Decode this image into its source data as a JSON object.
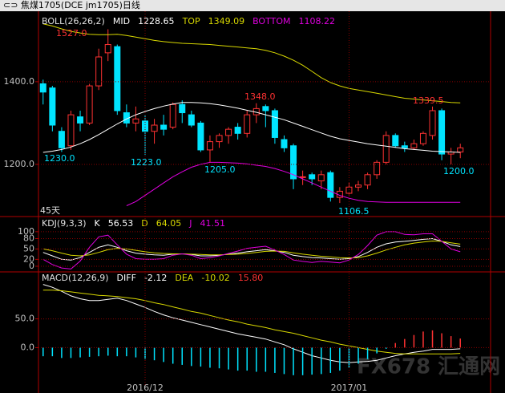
{
  "title_bar": "⊂⊃ 焦煤1705(DCE jm1705)日线",
  "watermark": "FX678 汇通网",
  "chart_data": [
    {
      "type": "candlestick",
      "indicator": "BOLL(26,26,2)",
      "note": "45天",
      "up_color": "#ff3232",
      "down_color": "#00e4ff",
      "open": [
        1395,
        1385,
        1280,
        1245,
        1315,
        1300,
        1390,
        1470,
        1485,
        1325,
        1300,
        1305,
        1280,
        1295,
        1290,
        1345,
        1320,
        1300,
        1235,
        1255,
        1270,
        1290,
        1275,
        1320,
        1340,
        1330,
        1260,
        1245,
        1170,
        1175,
        1160,
        1180,
        1120,
        1130,
        1145,
        1150,
        1175,
        1205,
        1270,
        1245,
        1240,
        1250,
        1270,
        1330,
        1225,
        1230
      ],
      "high": [
        1405,
        1390,
        1290,
        1330,
        1330,
        1395,
        1480,
        1527,
        1490,
        1345,
        1340,
        1320,
        1310,
        1320,
        1350,
        1355,
        1330,
        1305,
        1270,
        1275,
        1290,
        1300,
        1330,
        1348,
        1345,
        1335,
        1270,
        1250,
        1185,
        1180,
        1185,
        1185,
        1145,
        1155,
        1160,
        1180,
        1210,
        1280,
        1275,
        1255,
        1260,
        1280,
        1340,
        1335,
        1240,
        1250
      ],
      "low": [
        1345,
        1280,
        1230,
        1235,
        1280,
        1295,
        1380,
        1450,
        1320,
        1290,
        1280,
        1223,
        1250,
        1270,
        1285,
        1300,
        1290,
        1230,
        1205,
        1240,
        1250,
        1260,
        1265,
        1300,
        1290,
        1250,
        1230,
        1140,
        1150,
        1150,
        1140,
        1110,
        1106.5,
        1125,
        1135,
        1140,
        1165,
        1200,
        1240,
        1230,
        1235,
        1245,
        1260,
        1210,
        1200,
        1215
      ],
      "close": [
        1375,
        1295,
        1240,
        1320,
        1300,
        1390,
        1460,
        1490,
        1330,
        1300,
        1310,
        1280,
        1295,
        1285,
        1345,
        1325,
        1295,
        1235,
        1255,
        1270,
        1285,
        1275,
        1320,
        1335,
        1330,
        1265,
        1240,
        1165,
        1170,
        1165,
        1175,
        1120,
        1135,
        1145,
        1150,
        1175,
        1205,
        1270,
        1245,
        1240,
        1250,
        1275,
        1330,
        1225,
        1230,
        1240
      ],
      "series": [
        {
          "name": "MID",
          "last": "1228.65",
          "color": "#ffffff",
          "values": [
            1229,
            1232,
            1236,
            1242,
            1250,
            1260,
            1272,
            1285,
            1298,
            1310,
            1320,
            1328,
            1335,
            1341,
            1346,
            1350,
            1350,
            1349,
            1347,
            1344,
            1340,
            1336,
            1331,
            1326,
            1320,
            1314,
            1308,
            1300,
            1292,
            1284,
            1276,
            1268,
            1262,
            1258,
            1254,
            1250,
            1247,
            1244,
            1241,
            1238,
            1236,
            1234,
            1232,
            1231,
            1230,
            1229
          ]
        },
        {
          "name": "TOP",
          "last": "1349.09",
          "color": "#d8d800",
          "values": [
            1540,
            1535,
            1528,
            1522,
            1518,
            1515,
            1514,
            1514,
            1515,
            1512,
            1508,
            1504,
            1500,
            1497,
            1495,
            1493,
            1492,
            1491,
            1490,
            1488,
            1486,
            1484,
            1482,
            1480,
            1476,
            1470,
            1462,
            1452,
            1440,
            1425,
            1410,
            1398,
            1390,
            1384,
            1380,
            1376,
            1372,
            1368,
            1364,
            1360,
            1358,
            1356,
            1354,
            1352,
            1350,
            1349
          ]
        },
        {
          "name": "BOTTOM",
          "last": "1108.22",
          "color": "#e000e0",
          "values": [
            null,
            null,
            null,
            null,
            null,
            null,
            null,
            null,
            null,
            1100,
            1110,
            1125,
            1140,
            1155,
            1170,
            1182,
            1193,
            1200,
            1205,
            1205,
            1204,
            1203,
            1201,
            1198,
            1195,
            1190,
            1183,
            1175,
            1165,
            1155,
            1145,
            1135,
            1125,
            1118,
            1113,
            1110,
            1109,
            1108,
            1108,
            1108,
            1108,
            1108,
            1108,
            1108,
            1108,
            1108
          ]
        }
      ],
      "annotations": [
        {
          "text": "1527.0",
          "color": "#ff3232"
        },
        {
          "text": "1230.0",
          "color": "#00e4ff"
        },
        {
          "text": "1223.0",
          "color": "#00e4ff"
        },
        {
          "text": "1205.0",
          "color": "#00e4ff"
        },
        {
          "text": "1348.0",
          "color": "#ff3232"
        },
        {
          "text": "1106.5",
          "color": "#00e4ff"
        },
        {
          "text": "1339.5",
          "color": "#ff3232"
        },
        {
          "text": "1200.0",
          "color": "#00e4ff"
        }
      ],
      "ylim": [
        1097,
        1559
      ],
      "yticks": [
        {
          "value": 1400,
          "label": "1400.0"
        },
        {
          "value": 1200,
          "label": "1200.0"
        }
      ],
      "grid": true
    },
    {
      "type": "line",
      "indicator": "KDJ(9,3,3)",
      "series": [
        {
          "name": "K",
          "last": "56.53",
          "color": "#ffffff",
          "values": [
            40,
            30,
            20,
            18,
            25,
            40,
            55,
            62,
            55,
            45,
            38,
            35,
            33,
            32,
            35,
            36,
            34,
            30,
            30,
            32,
            35,
            38,
            42,
            45,
            48,
            45,
            40,
            32,
            28,
            25,
            24,
            22,
            20,
            22,
            28,
            40,
            55,
            65,
            70,
            72,
            75,
            78,
            80,
            72,
            62,
            57
          ]
        },
        {
          "name": "D",
          "last": "64.05",
          "color": "#d8d800",
          "values": [
            50,
            45,
            38,
            32,
            30,
            33,
            40,
            48,
            52,
            50,
            46,
            42,
            39,
            37,
            36,
            36,
            35,
            34,
            33,
            33,
            34,
            35,
            37,
            40,
            43,
            44,
            43,
            39,
            35,
            32,
            29,
            27,
            25,
            24,
            25,
            30,
            38,
            47,
            55,
            62,
            67,
            70,
            73,
            72,
            68,
            64
          ]
        },
        {
          "name": "J",
          "last": "41.51",
          "color": "#e000e0",
          "values": [
            20,
            5,
            -5,
            -8,
            15,
            55,
            85,
            90,
            62,
            35,
            22,
            20,
            20,
            22,
            32,
            36,
            32,
            22,
            25,
            30,
            37,
            44,
            52,
            55,
            58,
            47,
            34,
            18,
            14,
            11,
            14,
            12,
            10,
            18,
            34,
            60,
            90,
            100,
            100,
            92,
            91,
            94,
            94,
            72,
            50,
            42
          ]
        }
      ],
      "ylim": [
        -14,
        109
      ],
      "yticks": [
        100,
        80,
        50,
        20,
        0
      ],
      "grid": true
    },
    {
      "type": "combo",
      "indicator": "MACD(12,26,9)",
      "categories": [
        null,
        null,
        null,
        null,
        null,
        null,
        null,
        null,
        null,
        null,
        null,
        "2016/12",
        null,
        null,
        null,
        null,
        null,
        null,
        null,
        null,
        null,
        null,
        null,
        null,
        null,
        null,
        null,
        null,
        null,
        null,
        null,
        null,
        null,
        "2017/01",
        null,
        null,
        null,
        null,
        null,
        null,
        null,
        null,
        null,
        null,
        null,
        null
      ],
      "series": [
        {
          "name": "DIFF",
          "last": "-2.12",
          "kind": "line",
          "color": "#ffffff",
          "values": [
            110,
            105,
            98,
            90,
            85,
            82,
            82,
            84,
            86,
            82,
            76,
            70,
            63,
            57,
            52,
            48,
            44,
            40,
            36,
            32,
            28,
            24,
            21,
            18,
            15,
            10,
            5,
            -2,
            -8,
            -14,
            -18,
            -22,
            -25,
            -26,
            -25,
            -24,
            -22,
            -18,
            -14,
            -11,
            -8,
            -6,
            -3,
            -3,
            -3,
            -2
          ]
        },
        {
          "name": "DEA",
          "last": "-10.02",
          "kind": "line",
          "color": "#d8d800",
          "values": [
            100,
            100,
            99,
            97,
            95,
            93,
            91,
            90,
            89,
            87,
            85,
            82,
            78,
            75,
            71,
            67,
            63,
            60,
            56,
            52,
            48,
            45,
            41,
            38,
            35,
            31,
            28,
            25,
            21,
            17,
            13,
            10,
            6,
            3,
            0,
            -3,
            -6,
            -8,
            -10,
            -11,
            -11,
            -11,
            -11,
            -11,
            -11,
            -10
          ]
        },
        {
          "last": "15.80",
          "kind": "bar",
          "color": "#ff3232",
          "negative_color": "#00e4ff",
          "values": [
            -15,
            -15,
            -18,
            -18,
            -17,
            -16,
            -15,
            -14,
            -15,
            -15,
            -17,
            -20,
            -22,
            -25,
            -28,
            -30,
            -32,
            -33,
            -35,
            -36,
            -38,
            -40,
            -40,
            -42,
            -42,
            -44,
            -46,
            -48,
            -48,
            -47,
            -46,
            -44,
            -40,
            -35,
            -28,
            -20,
            -10,
            -2,
            8,
            15,
            22,
            28,
            30,
            25,
            20,
            15.8
          ]
        }
      ],
      "ylim": [
        -65,
        129
      ],
      "yticks": [
        {
          "value": 50,
          "label": "50.0"
        },
        {
          "value": 0,
          "label": "0.0"
        }
      ],
      "grid": true
    }
  ]
}
